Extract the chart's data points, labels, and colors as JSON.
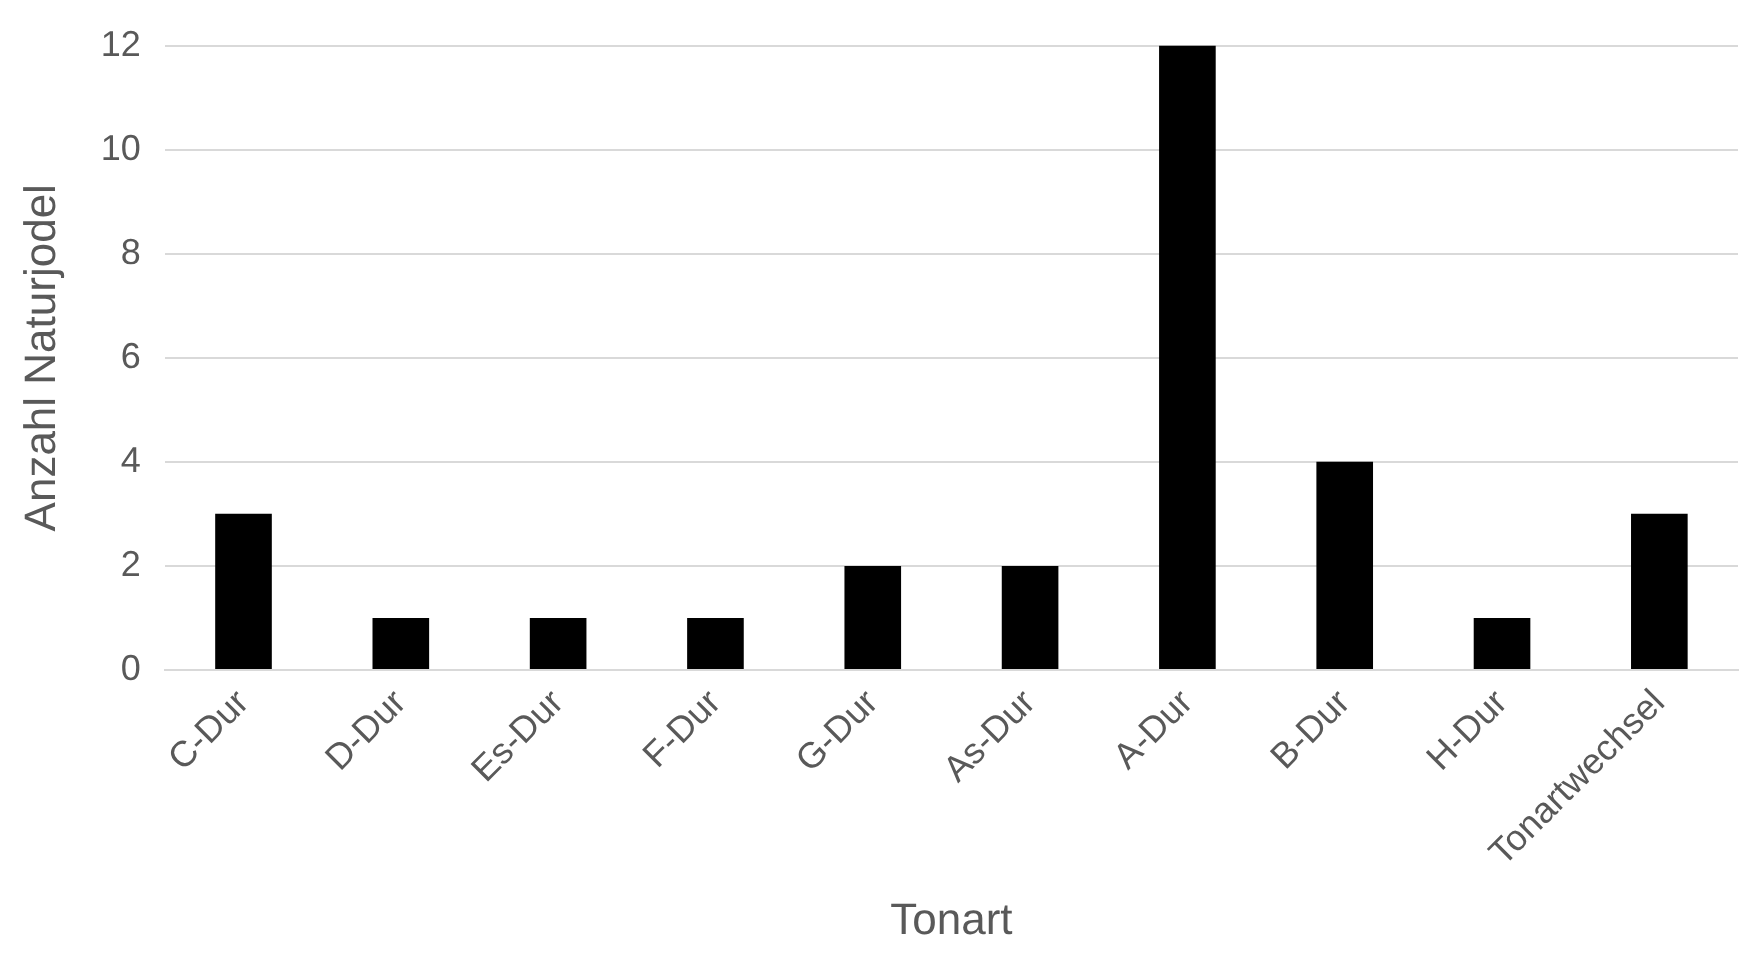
{
  "chart_data": {
    "type": "bar",
    "xlabel": "Tonart",
    "ylabel": "Anzahl Naturjodel",
    "categories": [
      "C-Dur",
      "D-Dur",
      "Es-Dur",
      "F-Dur",
      "G-Dur",
      "As-Dur",
      "A-Dur",
      "B-Dur",
      "H-Dur",
      "Tonartwechsel"
    ],
    "values": [
      3,
      1,
      1,
      1,
      2,
      2,
      12,
      4,
      1,
      3
    ],
    "color": "#000000",
    "ylim": [
      0,
      12
    ],
    "yticks": [
      0,
      2,
      4,
      6,
      8,
      10,
      12
    ],
    "grid": "y",
    "legend": false
  }
}
